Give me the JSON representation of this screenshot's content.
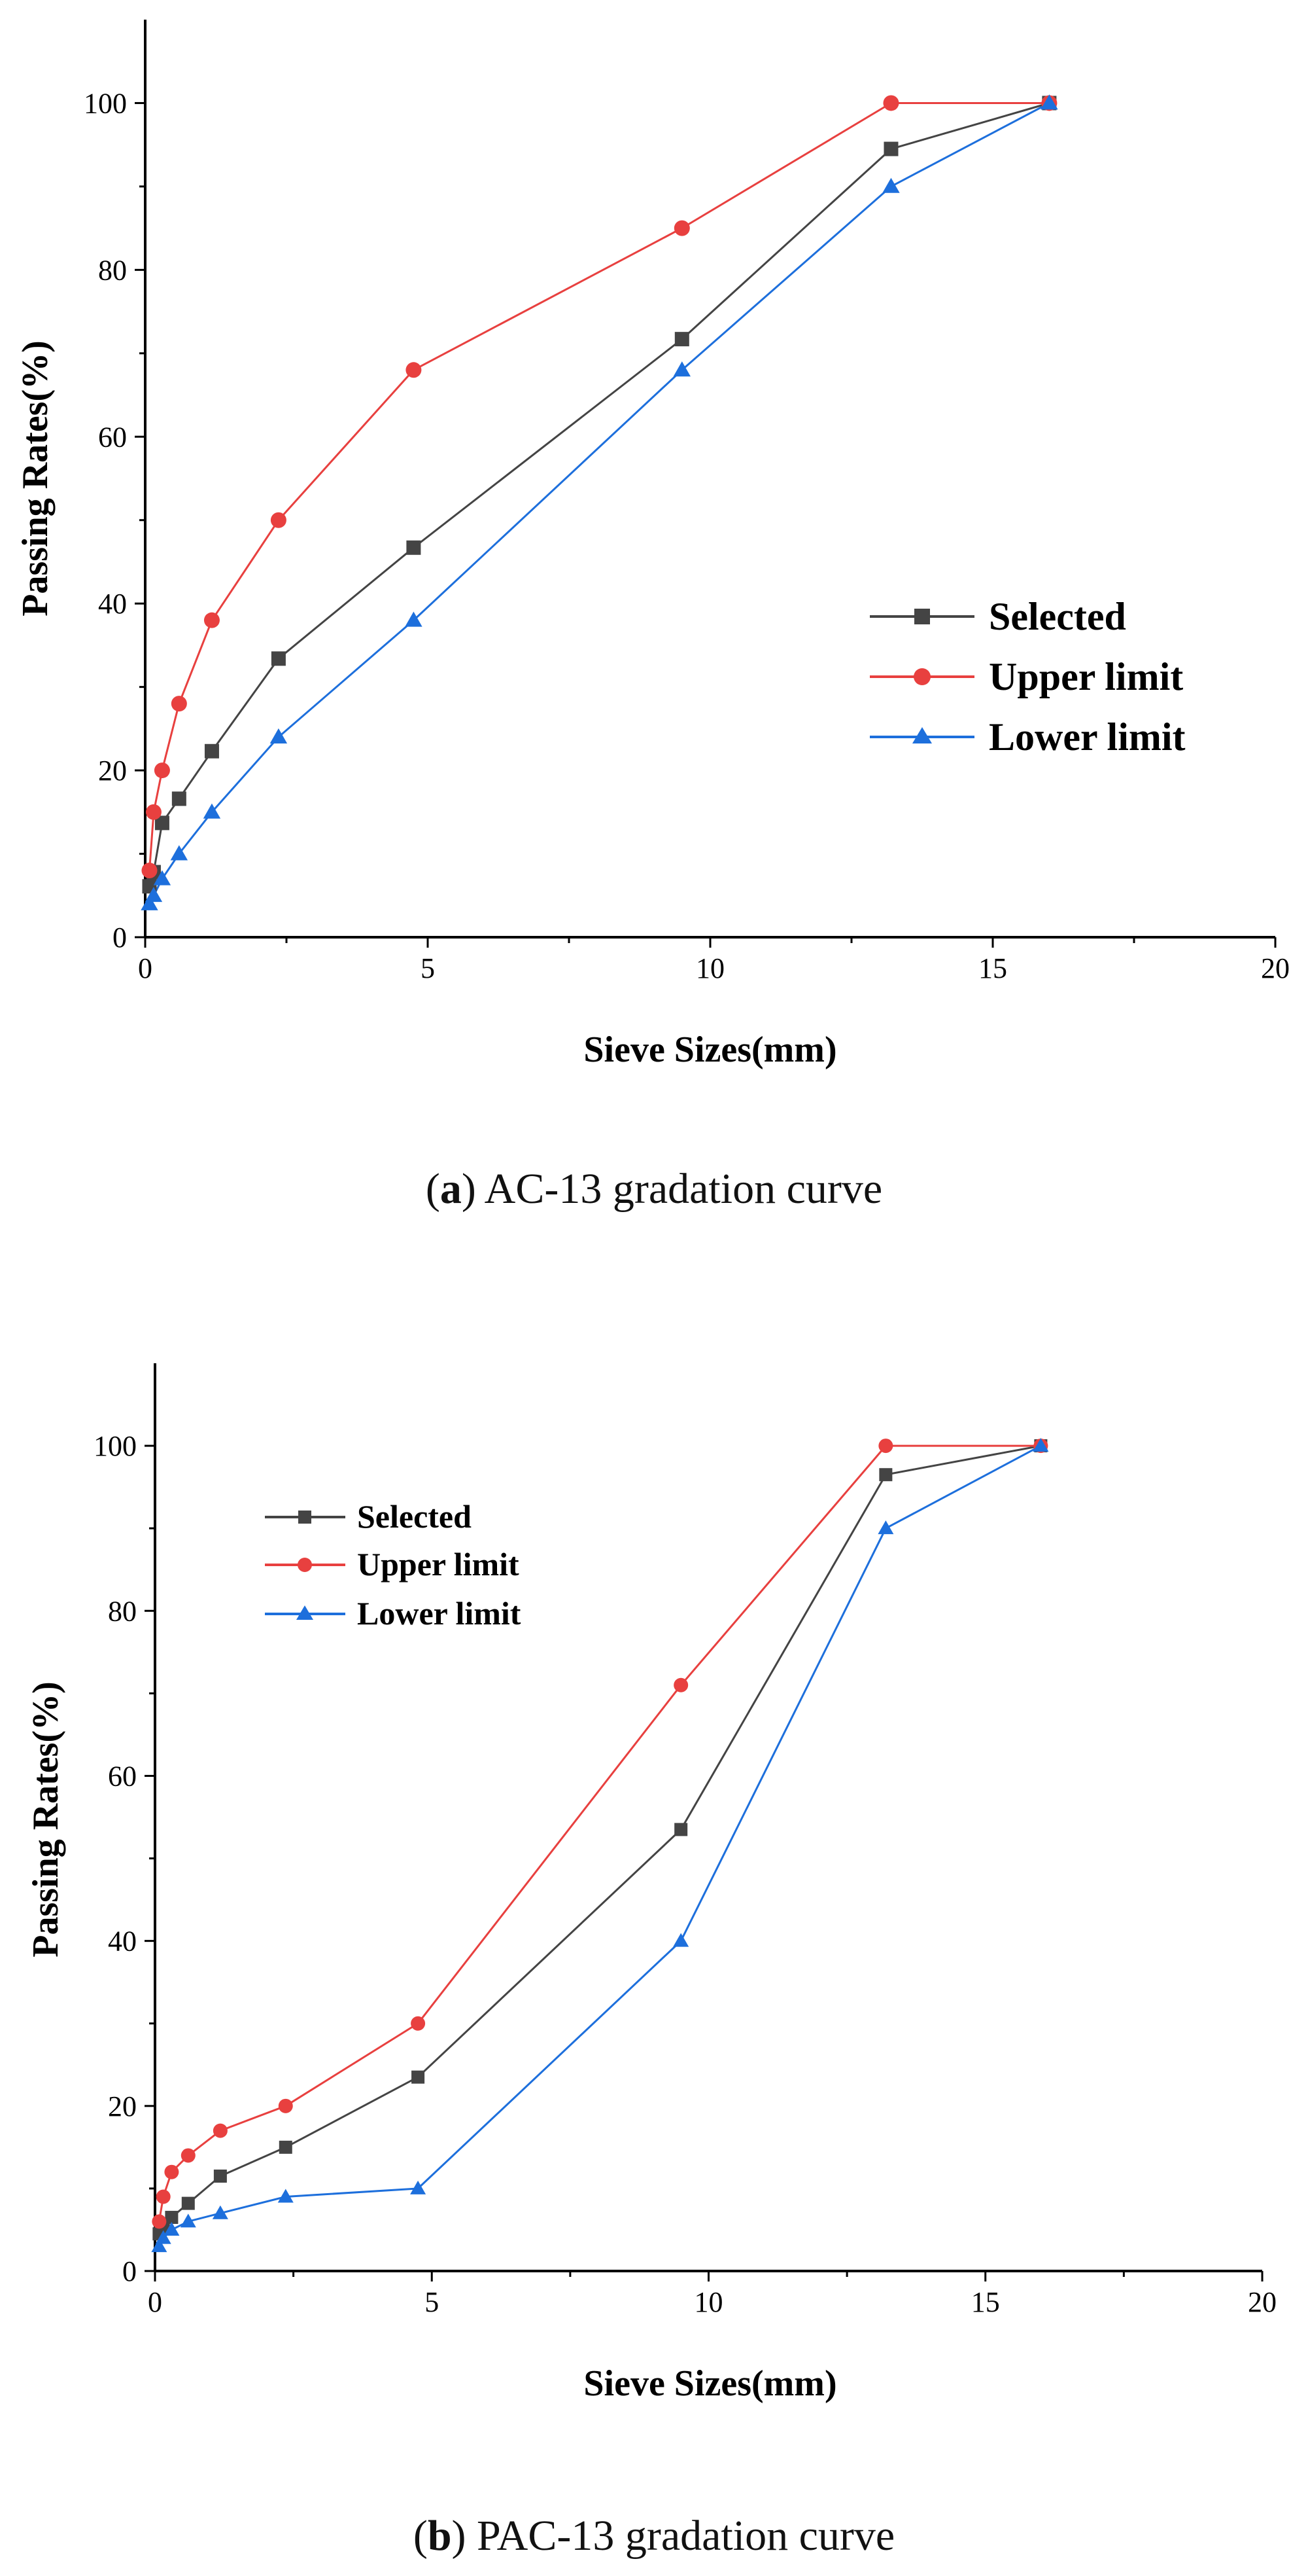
{
  "chart_data": [
    {
      "type": "line",
      "caption_letter": "a",
      "caption_text": "AC-13 gradation curve",
      "xlabel": "Sieve Sizes(mm)",
      "ylabel": "Passing Rates(%)",
      "xlim": [
        0,
        20
      ],
      "ylim": [
        0,
        110
      ],
      "xticks": [
        0,
        5,
        10,
        15,
        20
      ],
      "yticks": [
        0,
        20,
        40,
        60,
        80,
        100
      ],
      "legend_position": "center-right",
      "series": [
        {
          "name": "Selected",
          "color": "#444444",
          "marker": "square",
          "x": [
            0.075,
            0.15,
            0.3,
            0.6,
            1.18,
            2.36,
            4.75,
            9.5,
            13.2,
            16
          ],
          "y": [
            6.1,
            7.8,
            13.7,
            16.6,
            22.3,
            33.4,
            46.7,
            71.7,
            94.5,
            100
          ]
        },
        {
          "name": "Upper limit",
          "color": "#e8403f",
          "marker": "circle",
          "x": [
            0.075,
            0.15,
            0.3,
            0.6,
            1.18,
            2.36,
            4.75,
            9.5,
            13.2,
            16
          ],
          "y": [
            8,
            15,
            20,
            28,
            38,
            50,
            68,
            85,
            100,
            100
          ]
        },
        {
          "name": "Lower limit",
          "color": "#1d6fdc",
          "marker": "triangle",
          "x": [
            0.075,
            0.15,
            0.3,
            0.6,
            1.18,
            2.36,
            4.75,
            9.5,
            13.2,
            16
          ],
          "y": [
            4,
            5,
            7,
            10,
            15,
            24,
            38,
            68,
            90,
            100
          ]
        }
      ]
    },
    {
      "type": "line",
      "caption_letter": "b",
      "caption_text": "PAC-13 gradation curve",
      "xlabel": "Sieve Sizes(mm)",
      "ylabel": "Passing Rates(%)",
      "xlim": [
        0,
        20
      ],
      "ylim": [
        0,
        110
      ],
      "xticks": [
        0,
        5,
        10,
        15,
        20
      ],
      "yticks": [
        0,
        20,
        40,
        60,
        80,
        100
      ],
      "legend_position": "top-left",
      "series": [
        {
          "name": "Selected",
          "color": "#444444",
          "marker": "square",
          "x": [
            0.075,
            0.15,
            0.3,
            0.6,
            1.18,
            2.36,
            4.75,
            9.5,
            13.2,
            16
          ],
          "y": [
            4.5,
            5.5,
            6.5,
            8.2,
            11.5,
            15,
            23.5,
            53.5,
            96.5,
            100
          ]
        },
        {
          "name": "Upper limit",
          "color": "#e8403f",
          "marker": "circle",
          "x": [
            0.075,
            0.15,
            0.3,
            0.6,
            1.18,
            2.36,
            4.75,
            9.5,
            13.2,
            16
          ],
          "y": [
            6,
            9,
            12,
            14,
            17,
            20,
            30,
            71,
            100,
            100
          ]
        },
        {
          "name": "Lower limit",
          "color": "#1d6fdc",
          "marker": "triangle",
          "x": [
            0.075,
            0.15,
            0.3,
            0.6,
            1.18,
            2.36,
            4.75,
            9.5,
            13.2,
            16
          ],
          "y": [
            3,
            4,
            5,
            6,
            7,
            9,
            10,
            40,
            90,
            100
          ]
        }
      ]
    }
  ]
}
